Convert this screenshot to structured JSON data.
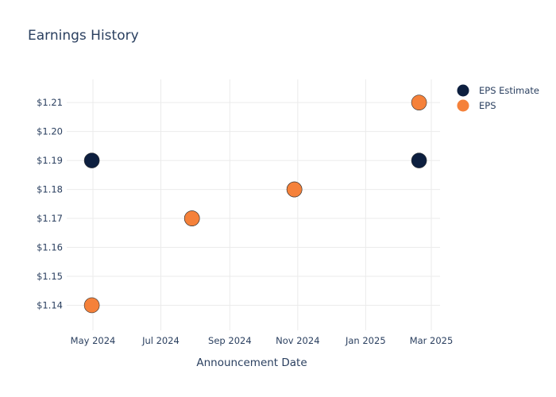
{
  "chart_data": {
    "type": "scatter",
    "title": "Earnings History",
    "xlabel": "Announcement Date",
    "ylabel": "",
    "x_ticks": [
      "May 2024",
      "Jul 2024",
      "Sep 2024",
      "Nov 2024",
      "Jan 2025",
      "Mar 2025"
    ],
    "y_ticks": [
      "$1.14",
      "$1.15",
      "$1.16",
      "$1.17",
      "$1.18",
      "$1.19",
      "$1.20",
      "$1.21"
    ],
    "ylim": [
      1.133,
      1.218
    ],
    "grid": true,
    "legend_position": "top-right",
    "series": [
      {
        "name": "EPS Estimate",
        "color": "#0d1f3f",
        "points": [
          {
            "x": "2024-04-30",
            "y": 1.19
          },
          {
            "x": "2024-07-29",
            "y": 1.17
          },
          {
            "x": "2024-10-29",
            "y": 1.18
          },
          {
            "x": "2025-02-18",
            "y": 1.19
          }
        ]
      },
      {
        "name": "EPS",
        "color": "#f5813a",
        "points": [
          {
            "x": "2024-04-30",
            "y": 1.14
          },
          {
            "x": "2024-07-29",
            "y": 1.17
          },
          {
            "x": "2024-10-29",
            "y": 1.18
          },
          {
            "x": "2025-02-18",
            "y": 1.21
          }
        ]
      }
    ]
  }
}
